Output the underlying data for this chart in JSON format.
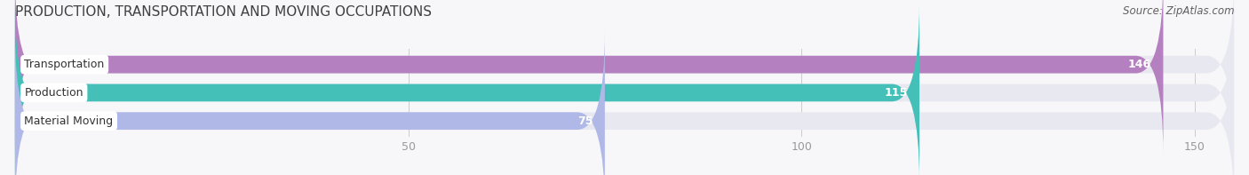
{
  "title": "PRODUCTION, TRANSPORTATION AND MOVING OCCUPATIONS",
  "source": "Source: ZipAtlas.com",
  "categories": [
    "Transportation",
    "Production",
    "Material Moving"
  ],
  "values": [
    146,
    115,
    75
  ],
  "bar_colors": [
    "#b580c0",
    "#45c0b8",
    "#b0b8e8"
  ],
  "bar_bg_color": "#e8e8f0",
  "xlim": [
    0,
    155
  ],
  "xticks": [
    50,
    100,
    150
  ],
  "title_fontsize": 11,
  "source_fontsize": 8.5,
  "label_fontsize": 9,
  "value_fontsize": 9,
  "tick_fontsize": 9,
  "title_color": "#404040",
  "source_color": "#606060",
  "label_color": "#333333",
  "value_color": "#ffffff",
  "tick_color": "#999999",
  "background_color": "#f7f7fa"
}
